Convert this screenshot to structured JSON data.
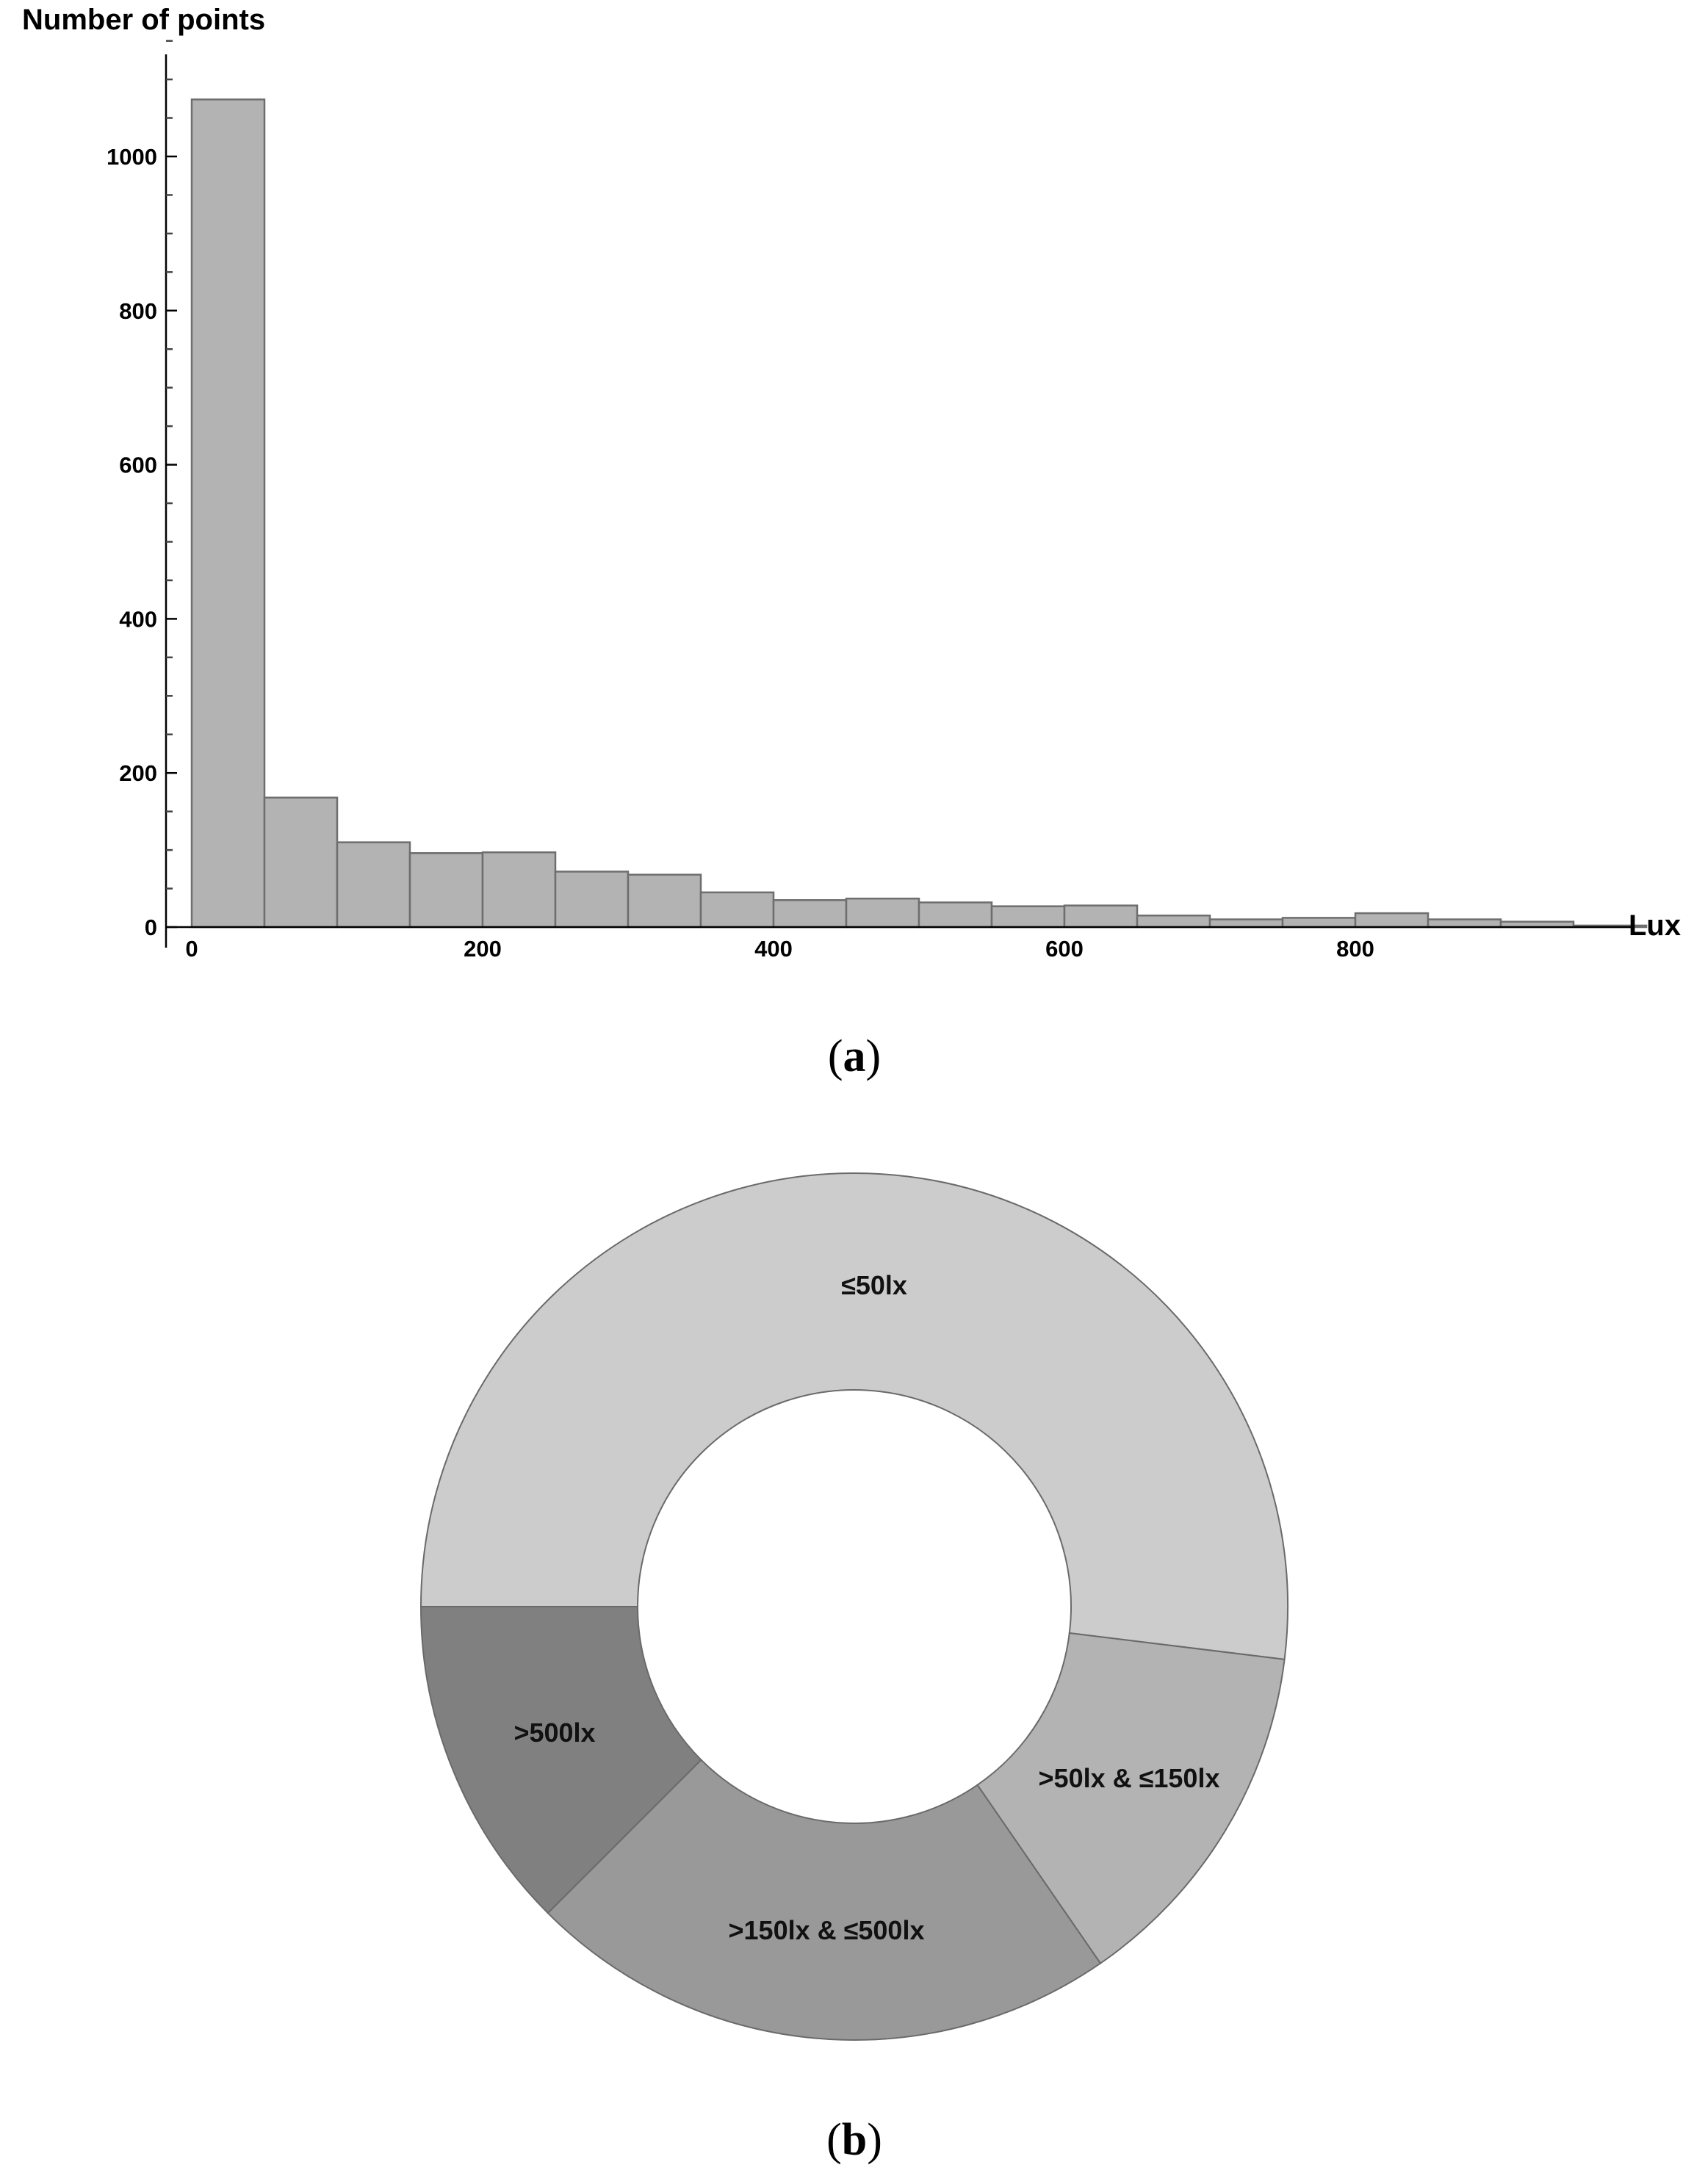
{
  "panel_a": {
    "label_open": "(",
    "label_letter": "a",
    "label_close": ")"
  },
  "panel_b": {
    "label_open": "(",
    "label_letter": "b",
    "label_close": ")"
  },
  "chart_data": [
    {
      "type": "bar",
      "subtype": "histogram",
      "title": "",
      "xlabel": "Lux",
      "ylabel": "Number of points",
      "bin_width": 50,
      "bins": [
        [
          0,
          50
        ],
        [
          50,
          100
        ],
        [
          100,
          150
        ],
        [
          150,
          200
        ],
        [
          200,
          250
        ],
        [
          250,
          300
        ],
        [
          300,
          350
        ],
        [
          350,
          400
        ],
        [
          400,
          450
        ],
        [
          450,
          500
        ],
        [
          500,
          550
        ],
        [
          550,
          600
        ],
        [
          600,
          650
        ],
        [
          650,
          700
        ],
        [
          700,
          750
        ],
        [
          750,
          800
        ],
        [
          800,
          850
        ],
        [
          850,
          900
        ],
        [
          900,
          950
        ],
        [
          950,
          1000
        ]
      ],
      "values": [
        1074,
        168,
        110,
        96,
        97,
        72,
        68,
        45,
        35,
        37,
        32,
        27,
        28,
        15,
        10,
        12,
        18,
        10,
        7,
        2
      ],
      "xlim": [
        0,
        1000
      ],
      "ylim": [
        0,
        1150
      ],
      "x_ticks": [
        "0",
        "200",
        "400",
        "600",
        "800"
      ],
      "x_tick_values": [
        0,
        200,
        400,
        600,
        800
      ],
      "y_ticks": [
        "0",
        "200",
        "400",
        "600",
        "800",
        "1000"
      ],
      "y_tick_values": [
        0,
        200,
        400,
        600,
        800,
        1000
      ],
      "y_minor_step": 50,
      "grid": false,
      "bar_color": "#b3b3b3"
    },
    {
      "type": "pie",
      "subtype": "donut",
      "title": "",
      "categories": [
        "≤50lx",
        ">50lx & ≤150lx",
        ">150lx & ≤500lx",
        ">500lx"
      ],
      "values_percent": [
        51.9,
        13.4,
        22.1,
        12.5
      ],
      "colors": [
        "#cccccc",
        "#b3b3b3",
        "#999999",
        "#808080"
      ],
      "legend": "none (labels on slices)"
    }
  ]
}
